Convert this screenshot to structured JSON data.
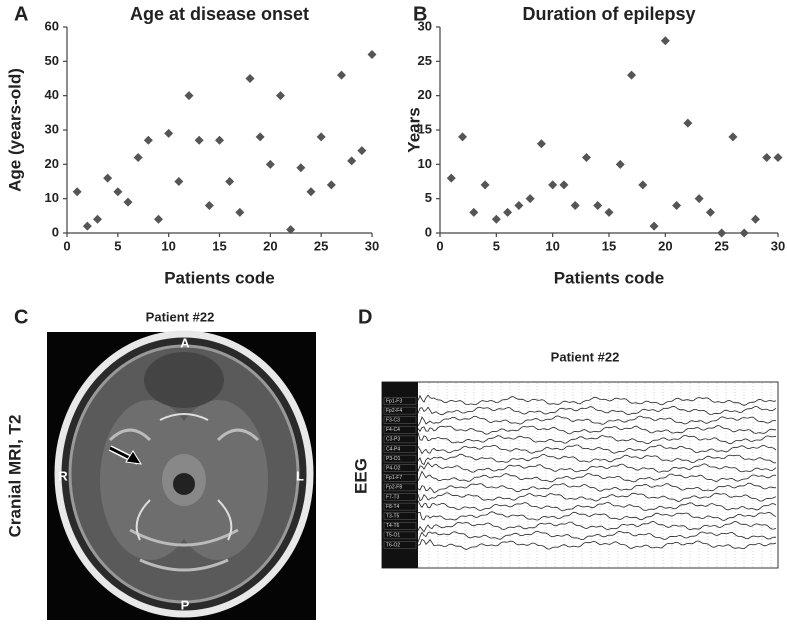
{
  "chart_data": [
    {
      "type": "scatter",
      "panel": "A",
      "title": "Age at disease onset",
      "x_label": "Patients code",
      "y_label": "Age (years-old)",
      "x": [
        1,
        2,
        3,
        4,
        5,
        6,
        7,
        8,
        9,
        10,
        11,
        12,
        13,
        14,
        15,
        16,
        17,
        18,
        19,
        20,
        21,
        22,
        23,
        24,
        25,
        26,
        27,
        28,
        29,
        30
      ],
      "values": [
        12,
        2,
        4,
        16,
        12,
        9,
        22,
        27,
        4,
        29,
        15,
        40,
        27,
        8,
        27,
        15,
        6,
        45,
        28,
        20,
        40,
        1,
        19,
        12,
        28,
        14,
        46,
        21,
        24,
        52
      ],
      "color": "#555555",
      "xlim": [
        0,
        30
      ],
      "xticks": [
        0,
        5,
        10,
        15,
        20,
        25,
        30
      ],
      "ylim": [
        0,
        60
      ],
      "yticks": [
        0,
        10,
        20,
        30,
        40,
        50,
        60
      ],
      "grid": false
    },
    {
      "type": "scatter",
      "panel": "B",
      "title": "Duration of epilepsy",
      "x_label": "Patients code",
      "y_label": "Years",
      "x": [
        1,
        2,
        3,
        4,
        5,
        6,
        7,
        8,
        9,
        10,
        11,
        12,
        13,
        14,
        15,
        16,
        17,
        18,
        19,
        20,
        21,
        22,
        23,
        24,
        25,
        26,
        27,
        28,
        29,
        30
      ],
      "values": [
        8,
        14,
        3,
        7,
        2,
        3,
        4,
        5,
        13,
        7,
        7,
        4,
        11,
        4,
        3,
        10,
        23,
        7,
        1,
        28,
        4,
        16,
        5,
        3,
        0,
        14,
        0,
        2,
        11,
        11
      ],
      "color": "#555555",
      "xlim": [
        0,
        30
      ],
      "xticks": [
        0,
        5,
        10,
        15,
        20,
        25,
        30
      ],
      "ylim": [
        0,
        30
      ],
      "yticks": [
        0,
        5,
        10,
        15,
        20,
        25,
        30
      ],
      "grid": false
    }
  ],
  "mri": {
    "panel": "C",
    "subtitle": "Patient #22",
    "side_label": "Cranial MRI, T2",
    "anterior": "A",
    "posterior": "P",
    "right": "R",
    "left": "L"
  },
  "eeg": {
    "panel": "D",
    "subtitle": "Patient #22",
    "side_label": "EEG",
    "channels": [
      "Fp1-F3",
      "Fp2-F4",
      "F3-C3",
      "F4-C4",
      "C3-P3",
      "C4-P4",
      "P3-O1",
      "P4-O2",
      "Fp1-F7",
      "Fp2-F8",
      "F7-T3",
      "F8-T4",
      "T3-T5",
      "T4-T6",
      "T5-O1",
      "T6-O2"
    ]
  }
}
